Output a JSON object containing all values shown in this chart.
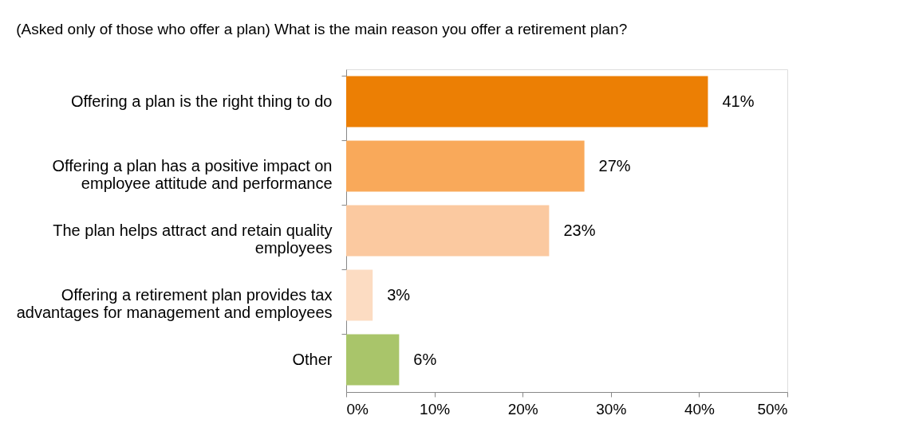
{
  "chart_data": {
    "type": "bar",
    "orientation": "horizontal",
    "title": "(Asked only of those who offer a plan) What is the main reason you offer a retirement plan?",
    "categories": [
      "Offering a plan is the right thing to do",
      "Offering a plan has a positive impact on employee attitude and performance",
      "The plan helps attract and retain quality employees",
      "Offering a retirement plan provides tax advantages for management and employees",
      "Other"
    ],
    "values": [
      41,
      27,
      23,
      3,
      6
    ],
    "colors": [
      "#ec7f04",
      "#f9a95a",
      "#fbc9a0",
      "#fcdcc2",
      "#a9c56a"
    ],
    "value_labels": [
      "41%",
      "27%",
      "23%",
      "3%",
      "6%"
    ],
    "xlim": [
      0,
      50
    ],
    "xticks": [
      {
        "value": 0,
        "label": "0%"
      },
      {
        "value": 10,
        "label": "10%"
      },
      {
        "value": 20,
        "label": "20%"
      },
      {
        "value": 30,
        "label": "30%"
      },
      {
        "value": 40,
        "label": "40%"
      },
      {
        "value": 50,
        "label": "50%"
      }
    ],
    "grid": false
  }
}
